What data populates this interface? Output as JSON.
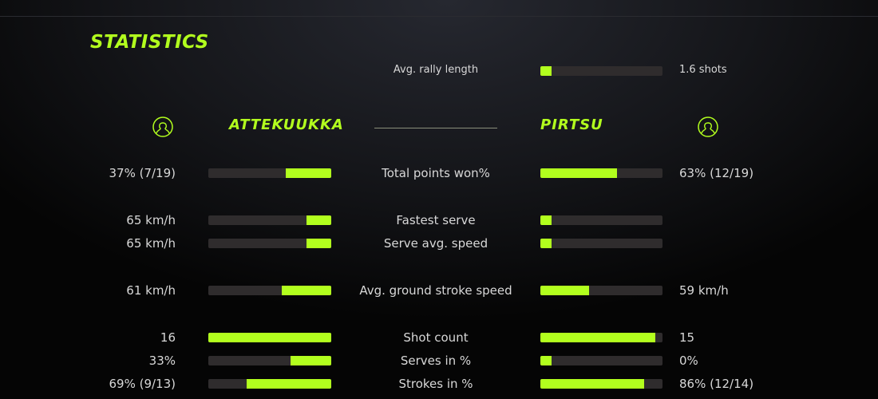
{
  "title": "STATISTICS",
  "accent": "#b2ff1e",
  "rally": {
    "label": "Avg. rally length",
    "value": "1.6 shots",
    "fill": 0.09
  },
  "players": {
    "left": {
      "name": "ATTEKUUKKA",
      "icon": "user-circle-icon"
    },
    "right": {
      "name": "PIRTSU",
      "icon": "user-circle-icon"
    }
  },
  "rows": [
    {
      "label": "Total points won%",
      "left": "37% (7/19)",
      "right": "63% (12/19)",
      "left_fill": 0.37,
      "right_fill": 0.63
    },
    {
      "label": "Fastest serve",
      "left": "65 km/h",
      "right": "",
      "left_fill": 0.2,
      "right_fill": 0.09
    },
    {
      "label": "Serve avg. speed",
      "left": "65 km/h",
      "right": "",
      "left_fill": 0.2,
      "right_fill": 0.09
    },
    {
      "label": "Avg. ground stroke speed",
      "left": "61 km/h",
      "right": "59 km/h",
      "left_fill": 0.4,
      "right_fill": 0.4
    },
    {
      "label": "Shot count",
      "left": "16",
      "right": "15",
      "left_fill": 1.0,
      "right_fill": 0.94
    },
    {
      "label": "Serves in %",
      "left": "33%",
      "right": "0%",
      "left_fill": 0.33,
      "right_fill": 0.09
    },
    {
      "label": "Strokes in %",
      "left": "69% (9/13)",
      "right": "86% (12/14)",
      "left_fill": 0.69,
      "right_fill": 0.85
    }
  ]
}
